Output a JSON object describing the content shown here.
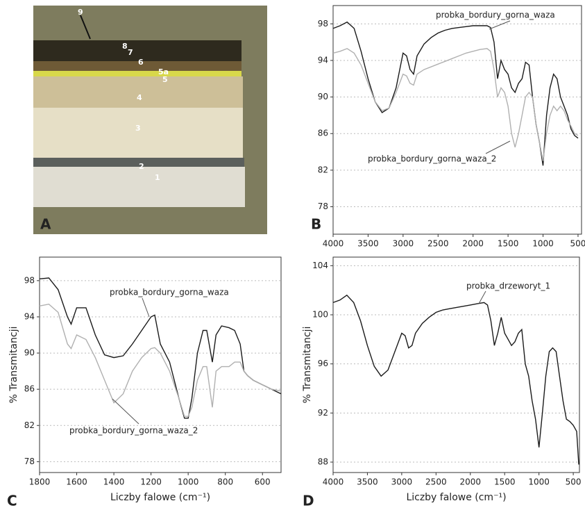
{
  "photo": {
    "label": "A",
    "layer_labels": [
      "9",
      "8",
      "7",
      "6",
      "5a",
      "5",
      "4",
      "3",
      "2",
      "1"
    ]
  },
  "chart_data": [
    {
      "type": "line",
      "panel_label": "B",
      "x": [
        4000,
        3900,
        3800,
        3700,
        3600,
        3500,
        3400,
        3300,
        3200,
        3100,
        3000,
        2950,
        2900,
        2850,
        2800,
        2700,
        2600,
        2500,
        2400,
        2300,
        2200,
        2100,
        2000,
        1900,
        1800,
        1750,
        1700,
        1650,
        1600,
        1550,
        1500,
        1450,
        1400,
        1350,
        1300,
        1250,
        1200,
        1150,
        1100,
        1050,
        1000,
        950,
        900,
        850,
        800,
        750,
        700,
        650,
        600,
        550,
        500
      ],
      "series": [
        {
          "name": "probka_bordury_gorna_waza",
          "color": "#1a1a1a",
          "values": [
            97.5,
            97.8,
            98.2,
            97.5,
            95,
            92,
            89.5,
            88.3,
            88.8,
            91,
            94.8,
            94.5,
            93,
            92.5,
            94.5,
            95.8,
            96.5,
            97,
            97.3,
            97.5,
            97.6,
            97.7,
            97.8,
            97.8,
            97.8,
            97.6,
            96,
            92,
            94,
            93,
            92.5,
            91,
            90.5,
            91.5,
            92,
            93.8,
            93.5,
            90,
            87,
            85,
            82.5,
            88,
            91,
            92.5,
            92,
            90,
            89,
            88,
            86.5,
            85.8,
            85.5
          ]
        },
        {
          "name": "probka_bordury_gorna_waza_2",
          "color": "#b0b0b0",
          "values": [
            94.8,
            95,
            95.3,
            94.8,
            93.5,
            91.5,
            89.5,
            88.5,
            88.8,
            90.5,
            92.5,
            92.3,
            91.5,
            91.3,
            92.5,
            93,
            93.3,
            93.6,
            93.9,
            94.2,
            94.5,
            94.8,
            95,
            95.2,
            95.3,
            95,
            93,
            90,
            91,
            90.5,
            89,
            86,
            84.5,
            86,
            88,
            90,
            90.5,
            90,
            87,
            85,
            83,
            86,
            88,
            89,
            88.5,
            89,
            88.5,
            87.5,
            86.8,
            86,
            85.8
          ]
        }
      ],
      "xlim": [
        4000,
        450
      ],
      "xticks": [
        4000,
        3500,
        3000,
        2500,
        2000,
        1500,
        1000,
        500
      ],
      "ylim": [
        75,
        100
      ],
      "yticks": [
        78,
        82,
        86,
        90,
        94,
        98
      ],
      "grid": true
    },
    {
      "type": "line",
      "panel_label": "C",
      "xlabel": "Liczby falowe (cm⁻¹)",
      "ylabel": "% Transmitancji",
      "x": [
        1800,
        1750,
        1700,
        1650,
        1630,
        1600,
        1550,
        1500,
        1450,
        1400,
        1350,
        1300,
        1250,
        1200,
        1180,
        1150,
        1100,
        1050,
        1020,
        1000,
        980,
        950,
        920,
        900,
        870,
        850,
        820,
        780,
        750,
        720,
        700,
        680,
        650,
        600,
        550,
        500
      ],
      "series": [
        {
          "name": "probka_bordury_gorna_waza",
          "color": "#1a1a1a",
          "values": [
            98.2,
            98.3,
            97,
            94,
            93.2,
            95,
            95,
            92,
            89.8,
            89.5,
            89.7,
            91,
            92.5,
            94,
            94.2,
            91,
            89,
            85,
            82.8,
            82.8,
            85,
            90,
            92.5,
            92.5,
            89,
            92,
            93,
            92.8,
            92.5,
            91,
            88,
            87.5,
            87,
            86.5,
            86,
            85.5
          ]
        },
        {
          "name": "probka_bordury_gorna_waza_2",
          "color": "#b0b0b0",
          "values": [
            95.2,
            95.4,
            94.5,
            91,
            90.5,
            92,
            91.5,
            89.5,
            87,
            84.5,
            85.5,
            88,
            89.5,
            90.5,
            90.6,
            90,
            88,
            85,
            83,
            83,
            84,
            87,
            88.5,
            88.5,
            84,
            88,
            88.5,
            88.5,
            89,
            89,
            88,
            87.5,
            87,
            86.5,
            86,
            85.8
          ]
        }
      ],
      "xlim": [
        1800,
        500
      ],
      "xticks": [
        1800,
        1600,
        1400,
        1200,
        1000,
        800,
        600
      ],
      "ylim": [
        76.8,
        100.6
      ],
      "yticks": [
        78,
        82,
        86,
        90,
        94,
        98
      ],
      "grid": true
    },
    {
      "type": "line",
      "panel_label": "D",
      "xlabel": "Liczby falowe (cm⁻¹)",
      "ylabel": "% Transmitancji",
      "x": [
        4000,
        3900,
        3800,
        3700,
        3600,
        3500,
        3400,
        3300,
        3200,
        3100,
        3000,
        2950,
        2900,
        2850,
        2800,
        2700,
        2600,
        2500,
        2400,
        2300,
        2200,
        2100,
        2000,
        1900,
        1800,
        1750,
        1700,
        1650,
        1600,
        1550,
        1500,
        1450,
        1400,
        1350,
        1300,
        1250,
        1200,
        1150,
        1100,
        1050,
        1000,
        950,
        900,
        850,
        800,
        750,
        700,
        650,
        600,
        550,
        500,
        450,
        420
      ],
      "series": [
        {
          "name": "probka_drzeworyt_1",
          "color": "#1a1a1a",
          "values": [
            101,
            101.2,
            101.6,
            101,
            99.5,
            97.5,
            95.8,
            95,
            95.5,
            97,
            98.5,
            98.3,
            97.3,
            97.5,
            98.5,
            99.3,
            99.8,
            100.2,
            100.4,
            100.5,
            100.6,
            100.7,
            100.8,
            100.9,
            101,
            100.8,
            99.5,
            97.5,
            98.5,
            99.8,
            98.5,
            98,
            97.5,
            97.8,
            98.5,
            98.8,
            96,
            95,
            93,
            91.5,
            89.2,
            92,
            95,
            97,
            97.3,
            97,
            95,
            93,
            91.5,
            91.3,
            91,
            90.5,
            87.8
          ]
        }
      ],
      "xlim": [
        4000,
        410
      ],
      "xticks": [
        4000,
        3500,
        3000,
        2500,
        2000,
        1500,
        1000,
        500
      ],
      "ylim": [
        87.15,
        104.7
      ],
      "yticks": [
        88,
        92,
        96,
        100,
        104
      ],
      "grid": true
    }
  ]
}
